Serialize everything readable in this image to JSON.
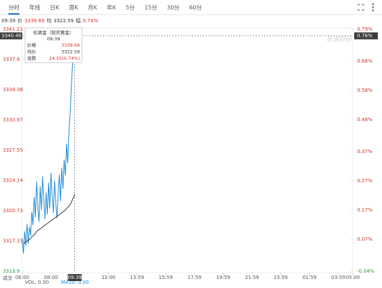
{
  "tabs": [
    "分时",
    "年线",
    "日K",
    "周K",
    "月K",
    "年K",
    "5分",
    "15分",
    "30分",
    "60分"
  ],
  "active_tab": 0,
  "info": {
    "time": "09:39",
    "price_label": "价",
    "price": "3339.69",
    "avg_label": "均",
    "avg": "3322.59",
    "change_label": "幅",
    "change": "0.74%"
  },
  "footer": {
    "label": "成交",
    "vol": "VOL: 0.00",
    "ma": "MA10: 0.00"
  },
  "chart_data": {
    "type": "line",
    "watermark": "新浪财经",
    "x": [
      "06:00",
      "06:05",
      "06:10",
      "06:15",
      "06:20",
      "06:25",
      "06:30",
      "06:35",
      "06:40",
      "06:45",
      "06:50",
      "06:55",
      "07:00",
      "07:05",
      "07:10",
      "07:15",
      "07:20",
      "07:25",
      "07:30",
      "07:35",
      "07:40",
      "07:45",
      "07:50",
      "07:55",
      "08:00",
      "08:05",
      "08:10",
      "08:15",
      "08:20",
      "08:25",
      "08:30",
      "08:35",
      "08:40",
      "08:45",
      "08:50",
      "08:55",
      "09:00",
      "09:05",
      "09:10",
      "09:15",
      "09:20",
      "09:25",
      "09:30",
      "09:35",
      "09:39"
    ],
    "series": [
      {
        "name": "价格",
        "color": "#1e8ad6",
        "values": [
          3317.6,
          3315.9,
          3318.4,
          3316.8,
          3319.2,
          3317.0,
          3318.9,
          3317.9,
          3320.6,
          3319.1,
          3322.3,
          3320.0,
          3324.0,
          3321.2,
          3319.5,
          3323.5,
          3320.8,
          3324.6,
          3321.9,
          3319.8,
          3322.8,
          3320.3,
          3323.9,
          3321.0,
          3325.0,
          3322.4,
          3320.5,
          3324.1,
          3321.6,
          3319.9,
          3322.7,
          3324.8,
          3321.8,
          3325.6,
          3323.2,
          3326.5,
          3324.7,
          3328.3,
          3326.1,
          3329.8,
          3331.6,
          3334.7,
          3337.2,
          3338.5,
          3339.69
        ]
      },
      {
        "name": "均价",
        "color": "#222222",
        "values": [
          null,
          3317.0,
          3317.1,
          3317.2,
          3317.3,
          3317.4,
          3317.5,
          3317.6,
          3317.8,
          3317.9,
          3318.0,
          3318.2,
          3318.4,
          3318.5,
          3318.6,
          3318.7,
          3318.8,
          3318.9,
          3319.0,
          3319.1,
          3319.2,
          3319.3,
          3319.4,
          3319.5,
          3319.6,
          3319.7,
          3319.8,
          3319.9,
          3320.0,
          3320.1,
          3320.2,
          3320.3,
          3320.4,
          3320.5,
          3320.6,
          3320.7,
          3320.8,
          3321.0,
          3321.1,
          3321.3,
          3321.4,
          3321.7,
          3322.0,
          3322.3,
          3322.59
        ]
      }
    ],
    "xlim": [
      "06:00",
      "05:00"
    ],
    "xticks": [
      "06:00",
      "08:00",
      "12:00",
      "13:59",
      "15:59",
      "17:59",
      "19:59",
      "21:59",
      "23:59",
      "01:59",
      "03:59",
      "05:00"
    ],
    "ylim": [
      3313.9,
      3341.21
    ],
    "yticks": [
      3313.9,
      3317.31,
      3320.73,
      3324.14,
      3327.55,
      3330.97,
      3334.38,
      3337.8,
      3341.21
    ],
    "y2lim": [
      -0.04,
      0.79
    ],
    "y2ticks": [
      {
        "value": -0.04,
        "label": "-0.04%"
      },
      {
        "value": 0.07,
        "label": "0.07%"
      },
      {
        "value": 0.17,
        "label": "0.17%"
      },
      {
        "value": 0.27,
        "label": "0.27%"
      },
      {
        "value": 0.37,
        "label": "0.37%"
      },
      {
        "value": 0.48,
        "label": "0.48%"
      },
      {
        "value": 0.58,
        "label": "0.58%"
      },
      {
        "value": 0.68,
        "label": "0.68%"
      },
      {
        "value": 0.79,
        "label": "0.79%"
      }
    ],
    "crosshair": {
      "x": "09:39",
      "y": 3340.46,
      "y2": {
        "value": 0.76,
        "label": "0.76%"
      }
    },
    "tooltip": {
      "title": "伦敦金（现货黄金）",
      "time": "09:39",
      "rows": [
        [
          "价格",
          "3339.69"
        ],
        [
          "均价",
          "3322.59"
        ],
        [
          "涨跌",
          "24.55(0.74%)"
        ]
      ]
    }
  }
}
